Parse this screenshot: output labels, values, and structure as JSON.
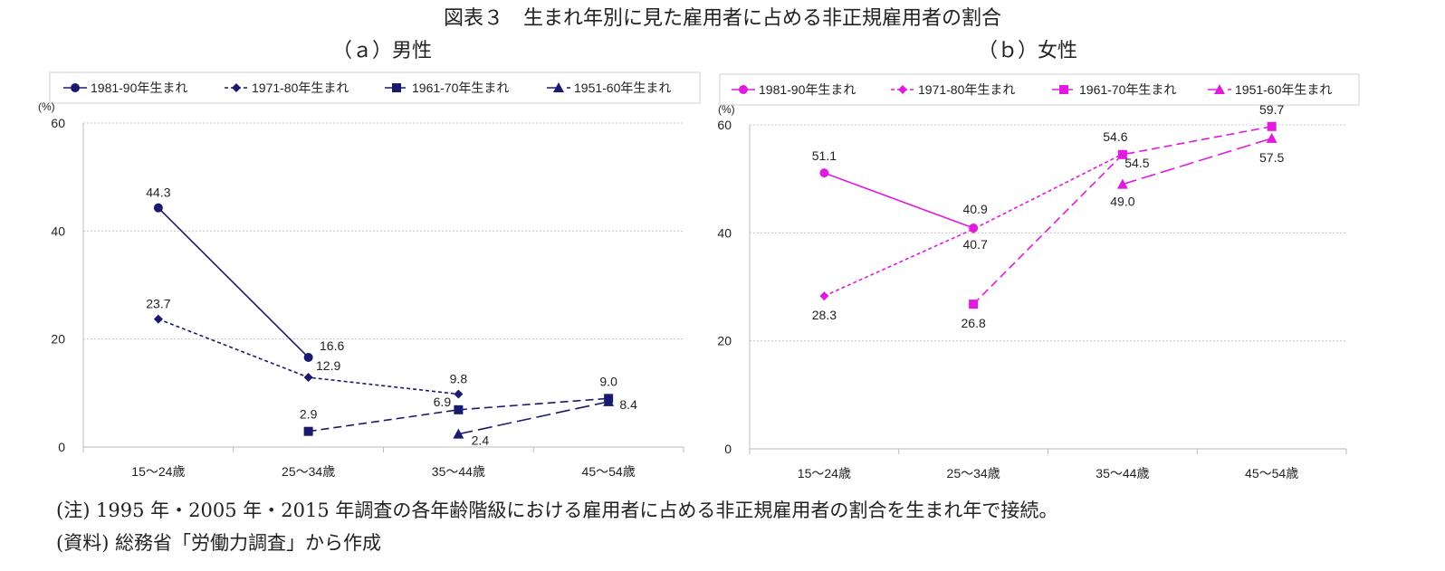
{
  "title": "図表３　生まれ年別に見た雇用者に占める非正規雇用者の割合",
  "notes": {
    "note1": "(注) 1995 年・2005 年・2015 年調査の各年齢階級における雇用者に占める非正規雇用者の割合を生まれ年で接続。",
    "note2": "(資料) 総務省「労働力調査」から作成"
  },
  "chart_data": [
    {
      "type": "line",
      "title": "（ａ）男性",
      "ylabel": "(%)",
      "ylim": [
        0,
        60
      ],
      "yticks": [
        "0",
        "20",
        "40",
        "60"
      ],
      "categories": [
        "15～24歳",
        "25～34歳",
        "35～44歳",
        "45～54歳"
      ],
      "color": "#1a1a6e",
      "legend_position": "top",
      "grid": true,
      "series": [
        {
          "name": "1981-90年生まれ",
          "marker": "circle",
          "dash": "solid",
          "values": [
            44.3,
            16.6,
            null,
            null
          ],
          "labels": [
            "44.3",
            "16.6",
            "",
            ""
          ]
        },
        {
          "name": "1971-80年生まれ",
          "marker": "diamond",
          "dash": "dot",
          "values": [
            23.7,
            12.9,
            9.8,
            null
          ],
          "labels": [
            "23.7",
            "12.9",
            "9.8",
            ""
          ]
        },
        {
          "name": "1961-70年生まれ",
          "marker": "square",
          "dash": "dash",
          "values": [
            null,
            2.9,
            6.9,
            9.0
          ],
          "labels": [
            "",
            "2.9",
            "6.9",
            "9.0"
          ]
        },
        {
          "name": "1951-60年生まれ",
          "marker": "triangle",
          "dash": "longdash",
          "values": [
            null,
            null,
            2.4,
            8.4
          ],
          "labels": [
            "",
            "",
            "2.4",
            "8.4"
          ]
        }
      ]
    },
    {
      "type": "line",
      "title": "（ｂ）女性",
      "ylabel": "(%)",
      "ylim": [
        0,
        60
      ],
      "yticks": [
        "0",
        "20",
        "40",
        "60"
      ],
      "categories": [
        "15～24歳",
        "25～34歳",
        "35～44歳",
        "45～54歳"
      ],
      "color": "#e11adf",
      "legend_position": "top",
      "grid": true,
      "series": [
        {
          "name": "1981-90年生まれ",
          "marker": "circle",
          "dash": "solid",
          "values": [
            51.1,
            40.9,
            null,
            null
          ],
          "labels": [
            "51.1",
            "40.9",
            "",
            ""
          ]
        },
        {
          "name": "1971-80年生まれ",
          "marker": "diamond",
          "dash": "dot",
          "values": [
            28.3,
            40.7,
            54.6,
            null
          ],
          "labels": [
            "28.3",
            "40.7",
            "54.6",
            ""
          ]
        },
        {
          "name": "1961-70年生まれ",
          "marker": "square",
          "dash": "dash",
          "values": [
            null,
            26.8,
            54.5,
            59.7
          ],
          "labels": [
            "",
            "26.8",
            "54.5",
            "59.7"
          ]
        },
        {
          "name": "1951-60年生まれ",
          "marker": "triangle",
          "dash": "longdash",
          "values": [
            null,
            null,
            49.0,
            57.5
          ],
          "labels": [
            "",
            "",
            "49.0",
            "57.5"
          ]
        }
      ]
    }
  ]
}
